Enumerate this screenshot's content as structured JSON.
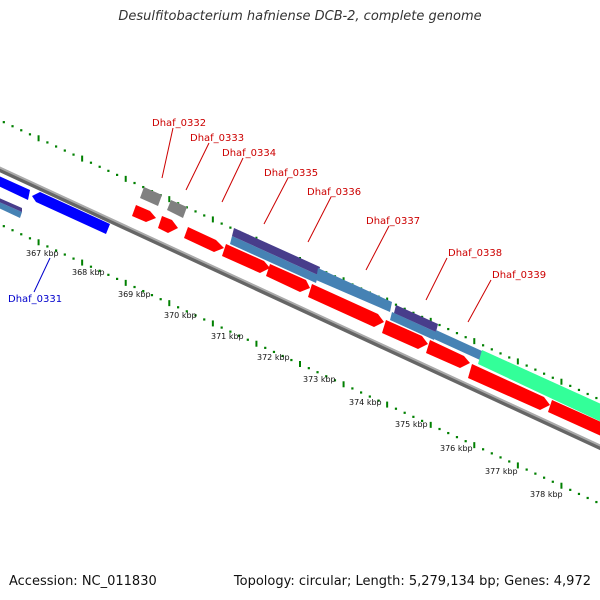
{
  "title": "Desulfitobacterium hafniense DCB-2, complete genome",
  "footer": {
    "accession": "Accession: NC_011830",
    "topology": "Topology: circular; Length: 5,279,134 bp; Genes: 4,972"
  },
  "colors": {
    "forward_gene": "#ff0000",
    "reverse_gene": "#0000ff",
    "cds_region": "#4682b4",
    "operon_region": "#483d8b",
    "feature_other": "#33ff99",
    "pseudo_gene": "#808080",
    "backbone": "#888888",
    "tick_green": "#008000",
    "label_red": "#cc0000",
    "label_blue": "#0000cc"
  },
  "ticks": [
    "367 kbp",
    "368 kbp",
    "369 kbp",
    "370 kbp",
    "371 kbp",
    "372 kbp",
    "373 kbp",
    "374 kbp",
    "375 kbp",
    "376 kbp",
    "377 kbp",
    "378 kbp"
  ],
  "gene_labels": [
    {
      "text": "Dhaf_0332",
      "color": "red"
    },
    {
      "text": "Dhaf_0333",
      "color": "red"
    },
    {
      "text": "Dhaf_0334",
      "color": "red"
    },
    {
      "text": "Dhaf_0335",
      "color": "red"
    },
    {
      "text": "Dhaf_0336",
      "color": "red"
    },
    {
      "text": "Dhaf_0337",
      "color": "red"
    },
    {
      "text": "Dhaf_0338",
      "color": "red"
    },
    {
      "text": "Dhaf_0339",
      "color": "red"
    },
    {
      "text": "Dhaf_0331",
      "color": "blue"
    }
  ]
}
